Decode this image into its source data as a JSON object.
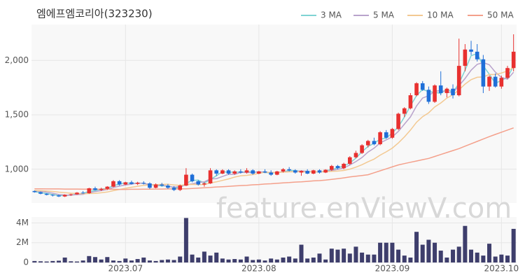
{
  "chart_data": {
    "type": "candlestick",
    "title": "엠에프엠코리아(323230)",
    "watermark": "feature.enViewV.com",
    "up_color": "#e8302f",
    "down_color": "#1f6fd8",
    "grid": true,
    "categories": [
      null,
      null,
      null,
      null,
      null,
      null,
      null,
      null,
      null,
      null,
      null,
      null,
      null,
      null,
      null,
      "2023.07",
      null,
      null,
      null,
      null,
      null,
      null,
      null,
      null,
      null,
      null,
      null,
      null,
      null,
      null,
      null,
      null,
      null,
      null,
      null,
      null,
      null,
      "2023.08",
      null,
      null,
      null,
      null,
      null,
      null,
      null,
      null,
      null,
      null,
      null,
      null,
      null,
      null,
      null,
      null,
      null,
      null,
      null,
      null,
      null,
      "2023.09",
      null,
      null,
      null,
      null,
      null,
      null,
      null,
      null,
      null,
      null,
      null,
      null,
      null,
      null,
      null,
      null,
      null,
      "2023.10",
      null,
      null
    ],
    "open": [
      800,
      790,
      775,
      765,
      760,
      750,
      765,
      770,
      785,
      780,
      825,
      810,
      820,
      840,
      890,
      860,
      880,
      865,
      875,
      870,
      830,
      860,
      850,
      830,
      810,
      850,
      950,
      890,
      860,
      870,
      990,
      960,
      990,
      960,
      980,
      970,
      990,
      960,
      980,
      970,
      950,
      980,
      1000,
      990,
      970,
      985,
      960,
      990,
      970,
      995,
      1030,
      1010,
      1050,
      1110,
      1150,
      1220,
      1260,
      1230,
      1340,
      1290,
      1370,
      1510,
      1560,
      1680,
      1790,
      1730,
      1620,
      1770,
      1700,
      1740,
      1680,
      1950,
      2100,
      2080,
      2010,
      1760,
      1850,
      1760,
      1840,
      1930
    ],
    "high": [
      805,
      795,
      780,
      770,
      765,
      770,
      775,
      790,
      800,
      830,
      840,
      830,
      845,
      900,
      900,
      885,
      895,
      885,
      890,
      880,
      870,
      875,
      865,
      845,
      860,
      1010,
      960,
      900,
      880,
      1010,
      1000,
      1000,
      1000,
      990,
      1000,
      1010,
      1000,
      985,
      1000,
      990,
      985,
      1010,
      1020,
      1000,
      990,
      1000,
      995,
      1000,
      1000,
      1040,
      1040,
      1060,
      1120,
      1170,
      1230,
      1270,
      1290,
      1350,
      1360,
      1380,
      1520,
      1570,
      1700,
      1800,
      1810,
      1760,
      1780,
      1900,
      1750,
      1780,
      2200,
      2150,
      2180,
      2150,
      2050,
      1860,
      1880,
      1860,
      1950,
      2240
    ],
    "low": [
      785,
      770,
      760,
      750,
      745,
      745,
      755,
      765,
      775,
      775,
      805,
      800,
      810,
      835,
      850,
      855,
      860,
      855,
      860,
      820,
      825,
      840,
      820,
      800,
      800,
      845,
      880,
      850,
      840,
      865,
      940,
      955,
      950,
      950,
      960,
      960,
      950,
      955,
      965,
      940,
      945,
      970,
      980,
      960,
      940,
      955,
      955,
      960,
      965,
      985,
      1000,
      1000,
      1040,
      1100,
      1140,
      1200,
      1220,
      1220,
      1280,
      1280,
      1360,
      1480,
      1550,
      1670,
      1720,
      1600,
      1610,
      1680,
      1660,
      1650,
      1670,
      1900,
      2050,
      1990,
      1700,
      1720,
      1750,
      1740,
      1830,
      1900
    ],
    "close": [
      790,
      775,
      765,
      760,
      750,
      765,
      770,
      785,
      780,
      825,
      810,
      820,
      840,
      890,
      860,
      880,
      865,
      875,
      870,
      830,
      860,
      850,
      830,
      810,
      850,
      950,
      890,
      860,
      870,
      990,
      960,
      990,
      960,
      980,
      970,
      990,
      960,
      980,
      970,
      950,
      980,
      1000,
      990,
      970,
      985,
      960,
      990,
      970,
      995,
      1030,
      1010,
      1050,
      1110,
      1150,
      1220,
      1260,
      1230,
      1340,
      1290,
      1370,
      1510,
      1560,
      1680,
      1790,
      1730,
      1620,
      1770,
      1700,
      1740,
      1680,
      1950,
      2100,
      2080,
      2010,
      1760,
      1850,
      1760,
      1840,
      1930,
      2080
    ],
    "ylim": [
      690,
      2330
    ],
    "yticks": [
      {
        "value": 1000,
        "label": "1,000"
      },
      {
        "value": 1500,
        "label": "1,500"
      },
      {
        "value": 2000,
        "label": "2,000"
      }
    ],
    "series": [
      {
        "name": "3 MA",
        "color": "#7fd3d3",
        "values": [
          795,
          785,
          777,
          767,
          758,
          758,
          762,
          773,
          778,
          797,
          805,
          818,
          823,
          850,
          863,
          877,
          868,
          873,
          870,
          858,
          853,
          847,
          847,
          830,
          830,
          870,
          897,
          900,
          873,
          907,
          940,
          980,
          970,
          977,
          970,
          980,
          973,
          977,
          970,
          967,
          967,
          977,
          990,
          987,
          982,
          972,
          978,
          973,
          985,
          998,
          1012,
          1030,
          1057,
          1103,
          1160,
          1210,
          1237,
          1277,
          1287,
          1333,
          1390,
          1480,
          1583,
          1677,
          1733,
          1713,
          1707,
          1697,
          1737,
          1707,
          1790,
          1910,
          2043,
          2063,
          1950,
          1873,
          1790,
          1817,
          1843,
          1950
        ]
      },
      {
        "name": "5 MA",
        "color": "#b9a3cc",
        "values": [
          800,
          798,
          790,
          780,
          768,
          763,
          762,
          767,
          770,
          785,
          794,
          804,
          815,
          833,
          845,
          855,
          863,
          874,
          870,
          860,
          856,
          855,
          843,
          836,
          840,
          858,
          866,
          878,
          884,
          912,
          914,
          934,
          954,
          952,
          972,
          970,
          970,
          976,
          974,
          970,
          970,
          976,
          978,
          978,
          985,
          981,
          979,
          975,
          980,
          989,
          999,
          1011,
          1039,
          1070,
          1108,
          1158,
          1194,
          1242,
          1270,
          1298,
          1348,
          1414,
          1482,
          1582,
          1654,
          1676,
          1718,
          1722,
          1712,
          1702,
          1768,
          1834,
          1910,
          1964,
          1980,
          1960,
          1892,
          1844,
          1828,
          1892
        ]
      },
      {
        "name": "10 MA",
        "color": "#f3c992",
        "values": [
          805,
          803,
          800,
          796,
          790,
          785,
          780,
          777,
          775,
          777,
          779,
          784,
          791,
          803,
          814,
          825,
          835,
          844,
          853,
          856,
          858,
          861,
          862,
          855,
          852,
          859,
          861,
          860,
          860,
          874,
          884,
          898,
          911,
          928,
          940,
          944,
          951,
          963,
          973,
          969,
          972,
          973,
          976,
          977,
          977,
          975,
          978,
          976,
          977,
          981,
          983,
          989,
          1001,
          1019,
          1042,
          1069,
          1093,
          1130,
          1160,
          1194,
          1242,
          1297,
          1360,
          1432,
          1483,
          1519,
          1573,
          1609,
          1654,
          1685,
          1729,
          1783,
          1823,
          1845,
          1848,
          1871,
          1870,
          1884,
          1903,
          1936
        ]
      },
      {
        "name": "50 MA",
        "color": "#f4a08b",
        "values": [
          820,
          820,
          819,
          819,
          819,
          818,
          818,
          818,
          817,
          817,
          817,
          816,
          816,
          816,
          815,
          815,
          816,
          816,
          817,
          817,
          818,
          818,
          819,
          819,
          820,
          820,
          823,
          827,
          830,
          833,
          837,
          840,
          843,
          847,
          850,
          853,
          857,
          860,
          864,
          867,
          871,
          875,
          878,
          882,
          885,
          889,
          893,
          896,
          900,
          907,
          914,
          921,
          929,
          936,
          943,
          950,
          968,
          986,
          1004,
          1022,
          1040,
          1052,
          1064,
          1076,
          1088,
          1100,
          1118,
          1136,
          1154,
          1172,
          1190,
          1212,
          1234,
          1256,
          1278,
          1300,
          1320,
          1340,
          1360,
          1380
        ]
      }
    ],
    "volume": {
      "color": "#3e3e6c",
      "ylim": [
        0,
        4600000
      ],
      "yticks": [
        0,
        {
          "value": 2000000,
          "label": "2M"
        },
        {
          "value": 4000000,
          "label": "4M"
        }
      ],
      "values": [
        150000,
        120000,
        100000,
        150000,
        180000,
        500000,
        120000,
        100000,
        200000,
        650000,
        550000,
        300000,
        550000,
        200000,
        150000,
        400000,
        200000,
        350000,
        500000,
        200000,
        150000,
        250000,
        300000,
        250000,
        600000,
        4500000,
        800000,
        500000,
        1100000,
        700000,
        1000000,
        400000,
        300000,
        350000,
        300000,
        600000,
        250000,
        300000,
        200000,
        400000,
        300000,
        500000,
        600000,
        400000,
        1800000,
        400000,
        500000,
        900000,
        300000,
        1400000,
        1300000,
        1400000,
        900000,
        1600000,
        1000000,
        800000,
        800000,
        2000000,
        2000000,
        2000000,
        1300000,
        700000,
        500000,
        3100000,
        1800000,
        2300000,
        2000000,
        1200000,
        500000,
        1300000,
        1600000,
        3700000,
        1300000,
        1000000,
        700000,
        1900000,
        600000,
        800000,
        700000,
        3400000
      ]
    }
  }
}
